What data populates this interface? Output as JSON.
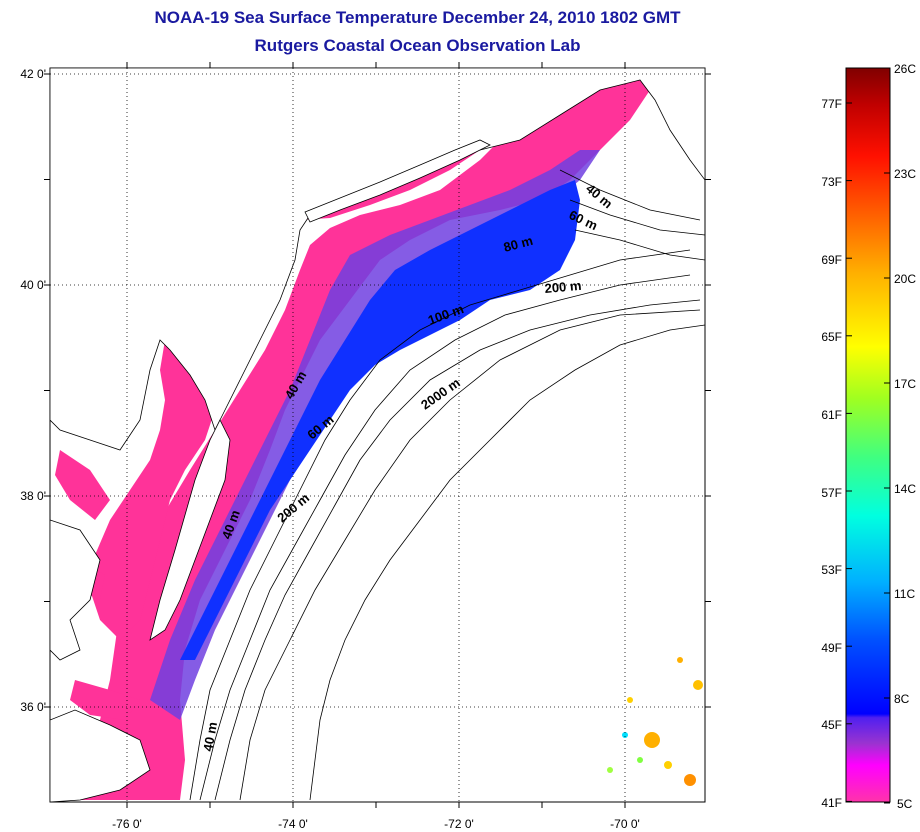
{
  "title": {
    "line1": "NOAA-19 Sea Surface Temperature December 24, 2010 1802 GMT",
    "line2": "Rutgers Coastal Ocean Observation Lab"
  },
  "map": {
    "lat_labels": [
      {
        "value": 42,
        "text": "42 0'"
      },
      {
        "value": 40,
        "text": "40 0'"
      },
      {
        "value": 38,
        "text": "38 0'"
      },
      {
        "value": 36,
        "text": "36 0'"
      }
    ],
    "lon_labels": [
      {
        "value": -76,
        "text": "-76 0'"
      },
      {
        "value": -74,
        "text": "-74 0'"
      },
      {
        "value": -72,
        "text": "-72 0'"
      },
      {
        "value": -70,
        "text": "-70 0'"
      }
    ],
    "contour_labels": [
      "40 m",
      "60 m",
      "80 m",
      "100 m",
      "200 m",
      "2000 m",
      "40 m",
      "60 m",
      "200 m",
      "40 m",
      "40 m"
    ]
  },
  "colorbar": {
    "celsius_labels": [
      "26C",
      "23C",
      "20C",
      "17C",
      "14C",
      "11C",
      "8C",
      "5C"
    ],
    "fahrenheit_labels": [
      "77F",
      "73F",
      "69F",
      "65F",
      "61F",
      "57F",
      "53F",
      "49F",
      "45F",
      "41F"
    ],
    "colors": [
      "#ff00ff",
      "#ff3399",
      "#7030d8",
      "#0000ff",
      "#0060ff",
      "#00c8ff",
      "#00ffd0",
      "#80ff40",
      "#ffff00",
      "#ffb000",
      "#ff6000",
      "#ff0000",
      "#b00000",
      "#800000"
    ]
  },
  "colors": {
    "title": "#1a1aa0",
    "cold_water": "#ff3399",
    "shelf_water": "#1030ff",
    "mid_water": "#7040e0"
  }
}
